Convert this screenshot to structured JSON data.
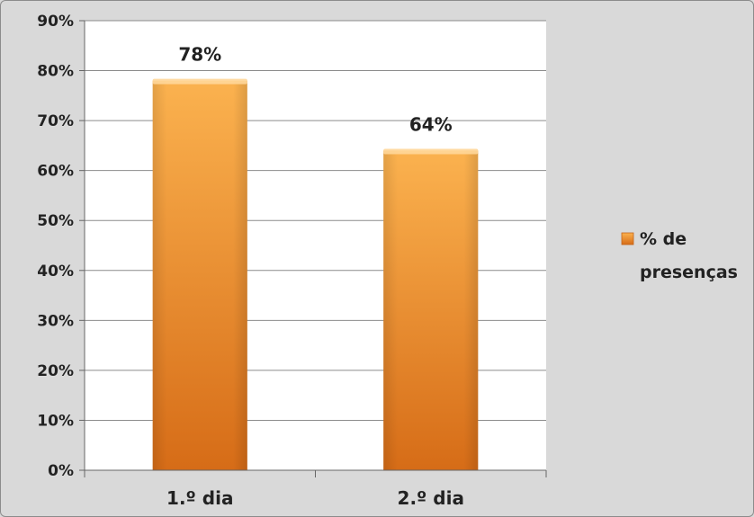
{
  "chart_data": {
    "type": "bar",
    "categories": [
      "1.º dia",
      "2.º dia"
    ],
    "series": [
      {
        "name": "% de presenças",
        "values": [
          78,
          64
        ]
      }
    ],
    "data_labels": [
      "78%",
      "64%"
    ],
    "y_ticks": [
      "0%",
      "10%",
      "20%",
      "30%",
      "40%",
      "50%",
      "60%",
      "70%",
      "80%",
      "90%"
    ],
    "ylim": [
      0,
      90
    ],
    "grid": true,
    "legend": {
      "position": "right",
      "lines": [
        "% de",
        "presenças"
      ]
    },
    "colors": {
      "bar_light": "#f9a93e",
      "bar_dark": "#d86e1a",
      "bar_top": "#ffd79a",
      "plot_bg": "#ffffff",
      "grid": "#8c8c8c"
    }
  }
}
